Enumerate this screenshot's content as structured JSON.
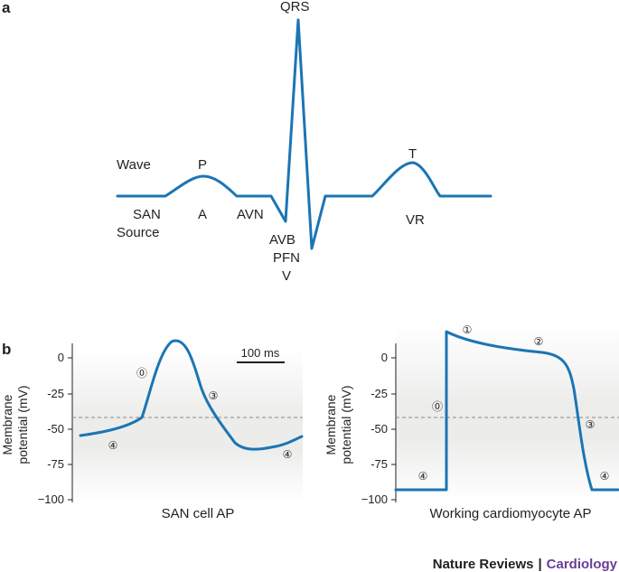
{
  "panel_a": {
    "letter": "a",
    "labels": {
      "qrs": "QRS",
      "wave": "Wave",
      "p": "P",
      "t": "T",
      "san": "SAN",
      "source": "Source",
      "a": "A",
      "avn": "AVN",
      "avb": "AVB",
      "pfn": "PFN",
      "v": "V",
      "vr": "VR"
    }
  },
  "panel_b": {
    "letter": "b",
    "y_axis_title_line1": "Membrane",
    "y_axis_title_line2": "potential (mV)",
    "y_ticks": [
      "0",
      "-25",
      "-50",
      "-75",
      "−100"
    ],
    "scale_bar_label": "100 ms",
    "threshold_mV": -42,
    "left": {
      "caption": "SAN cell AP",
      "phases": [
        "⓪",
        "③",
        "④",
        "④"
      ]
    },
    "right": {
      "caption": "Working cardiomyocyte AP",
      "phases": [
        "①",
        "②",
        "⓪",
        "③",
        "④",
        "④"
      ]
    }
  },
  "footer": {
    "journal": "Nature Reviews",
    "separator": "|",
    "section": "Cardiology"
  },
  "colors": {
    "trace": "#1b75b4",
    "text": "#231f20",
    "section": "#6a3d97",
    "threshold": "#8c8c8c"
  }
}
